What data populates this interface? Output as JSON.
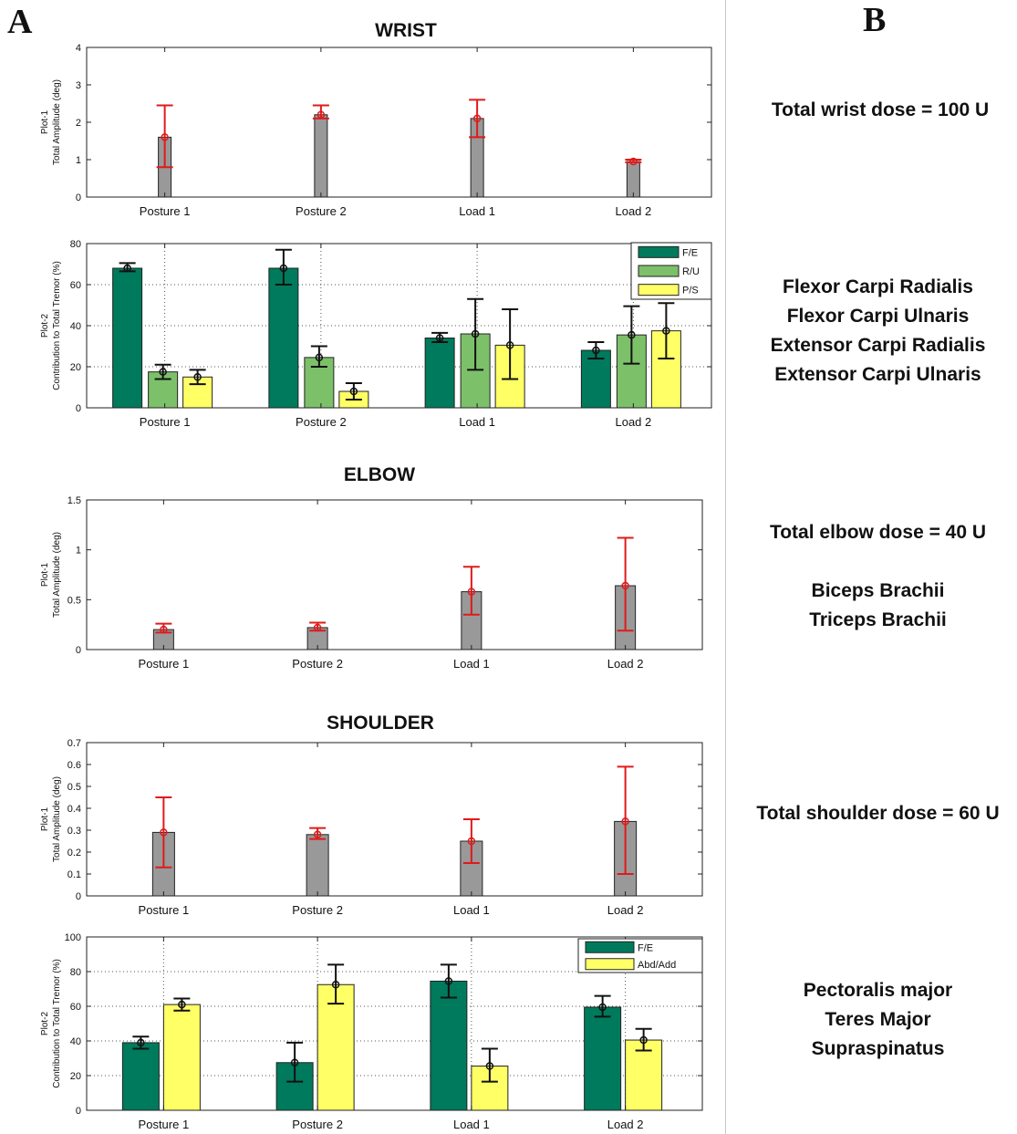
{
  "panel_labels": {
    "a": "A",
    "b": "B"
  },
  "section_titles": {
    "wrist": "WRIST",
    "elbow": "ELBOW",
    "shoulder": "SHOULDER"
  },
  "notes": {
    "wrist_dose": "Total wrist dose = 100 U",
    "wrist_muscles": [
      "Flexor Carpi Radialis",
      "Flexor Carpi Ulnaris",
      "Extensor Carpi Radialis",
      "Extensor Carpi Ulnaris"
    ],
    "elbow_dose": "Total elbow dose = 40 U",
    "elbow_muscles": [
      "Biceps Brachii",
      "Triceps Brachii"
    ],
    "shoulder_dose": "Total shoulder dose = 60 U",
    "shoulder_muscles": [
      "Pectoralis major",
      "Teres Major",
      "Supraspinatus"
    ]
  },
  "colors": {
    "gray_bar": "#999999",
    "error_red": "#e01a1a",
    "error_black": "#111111",
    "fe_green": "#007a5c",
    "ru_green": "#7dc06a",
    "ps_yellow": "#ffff66",
    "abd_yellow": "#ffff66"
  },
  "chart_data": [
    {
      "id": "wrist-plot1",
      "type": "bar",
      "categories": [
        "Posture 1",
        "Posture 2",
        "Load 1",
        "Load 2"
      ],
      "ylabel_lines": [
        "Plot-1",
        "Total Amplitude (deg)"
      ],
      "ylim": [
        0,
        4
      ],
      "yticks": [
        "0",
        "1",
        "2",
        "3",
        "4"
      ],
      "ytick_values": [
        0,
        1,
        2,
        3,
        4
      ],
      "grid": false,
      "legend": null,
      "series": [
        {
          "values": [
            1.6,
            2.2,
            2.1,
            0.95
          ],
          "err_low": [
            0.8,
            2.1,
            1.6,
            0.93
          ],
          "err_high": [
            2.45,
            2.45,
            2.6,
            1.0
          ],
          "color": "#999999",
          "err_color": "#e01a1a"
        }
      ]
    },
    {
      "id": "wrist-plot2",
      "type": "bar",
      "categories": [
        "Posture 1",
        "Posture 2",
        "Load 1",
        "Load 2"
      ],
      "ylabel_lines": [
        "Plot-2",
        "Contribution to Total Tremor (%)"
      ],
      "ylim": [
        0,
        80
      ],
      "yticks": [
        "0",
        "20",
        "40",
        "60",
        "80"
      ],
      "ytick_values": [
        0,
        20,
        40,
        60,
        80
      ],
      "grid": true,
      "legend": "top-right",
      "series": [
        {
          "name": "F/E",
          "values": [
            68,
            68,
            34,
            28
          ],
          "err_low": [
            66.5,
            60,
            32,
            24
          ],
          "err_high": [
            70.5,
            77,
            36.5,
            32
          ],
          "color": "#007a5c",
          "err_color": "#111111"
        },
        {
          "name": "R/U",
          "values": [
            17.5,
            24.5,
            36,
            35.5
          ],
          "err_low": [
            14,
            20,
            18.5,
            21.5
          ],
          "err_high": [
            21,
            30,
            53,
            49.5
          ],
          "color": "#7dc06a",
          "err_color": "#111111"
        },
        {
          "name": "P/S",
          "values": [
            15,
            8,
            30.5,
            37.5
          ],
          "err_low": [
            11.5,
            4,
            14,
            24
          ],
          "err_high": [
            18.5,
            12,
            48,
            51
          ],
          "color": "#ffff66",
          "err_color": "#111111"
        }
      ]
    },
    {
      "id": "elbow-plot1",
      "type": "bar",
      "categories": [
        "Posture 1",
        "Posture 2",
        "Load 1",
        "Load 2"
      ],
      "ylabel_lines": [
        "Plot-1",
        "Total Amplitude (deg)"
      ],
      "ylim": [
        0,
        1.5
      ],
      "yticks": [
        "0",
        "0.5",
        "1",
        "1.5"
      ],
      "ytick_values": [
        0,
        0.5,
        1,
        1.5
      ],
      "grid": false,
      "legend": null,
      "series": [
        {
          "values": [
            0.2,
            0.22,
            0.58,
            0.64
          ],
          "err_low": [
            0.17,
            0.19,
            0.35,
            0.19
          ],
          "err_high": [
            0.26,
            0.27,
            0.83,
            1.12
          ],
          "color": "#999999",
          "err_color": "#e01a1a"
        }
      ]
    },
    {
      "id": "shoulder-plot1",
      "type": "bar",
      "categories": [
        "Posture 1",
        "Posture 2",
        "Load 1",
        "Load 2"
      ],
      "ylabel_lines": [
        "Plot-1",
        "Total Amplitude (deg)"
      ],
      "ylim": [
        0,
        0.7
      ],
      "yticks": [
        "0",
        "0.1",
        "0.2",
        "0.3",
        "0.4",
        "0.5",
        "0.6",
        "0.7"
      ],
      "ytick_values": [
        0,
        0.1,
        0.2,
        0.3,
        0.4,
        0.5,
        0.6,
        0.7
      ],
      "grid": false,
      "legend": null,
      "series": [
        {
          "values": [
            0.29,
            0.28,
            0.25,
            0.34
          ],
          "err_low": [
            0.13,
            0.26,
            0.15,
            0.1
          ],
          "err_high": [
            0.45,
            0.31,
            0.35,
            0.59
          ],
          "color": "#999999",
          "err_color": "#e01a1a"
        }
      ]
    },
    {
      "id": "shoulder-plot2",
      "type": "bar",
      "categories": [
        "Posture 1",
        "Posture 2",
        "Load 1",
        "Load 2"
      ],
      "ylabel_lines": [
        "Plot-2",
        "Contribution to Total Tremor (%)"
      ],
      "ylim": [
        0,
        100
      ],
      "yticks": [
        "0",
        "20",
        "40",
        "60",
        "80",
        "100"
      ],
      "ytick_values": [
        0,
        20,
        40,
        60,
        80,
        100
      ],
      "grid": true,
      "legend": "top-right",
      "series": [
        {
          "name": "F/E",
          "values": [
            39,
            27.5,
            74.5,
            59.5
          ],
          "err_low": [
            35.5,
            16.5,
            65,
            54
          ],
          "err_high": [
            42.5,
            39,
            84,
            66
          ],
          "color": "#007a5c",
          "err_color": "#111111"
        },
        {
          "name": "Abd/Add",
          "values": [
            61,
            72.5,
            25.5,
            40.5
          ],
          "err_low": [
            57.5,
            61.5,
            16.5,
            34.5
          ],
          "err_high": [
            64.5,
            84,
            35.5,
            47
          ],
          "color": "#ffff66",
          "err_color": "#111111"
        }
      ]
    }
  ]
}
